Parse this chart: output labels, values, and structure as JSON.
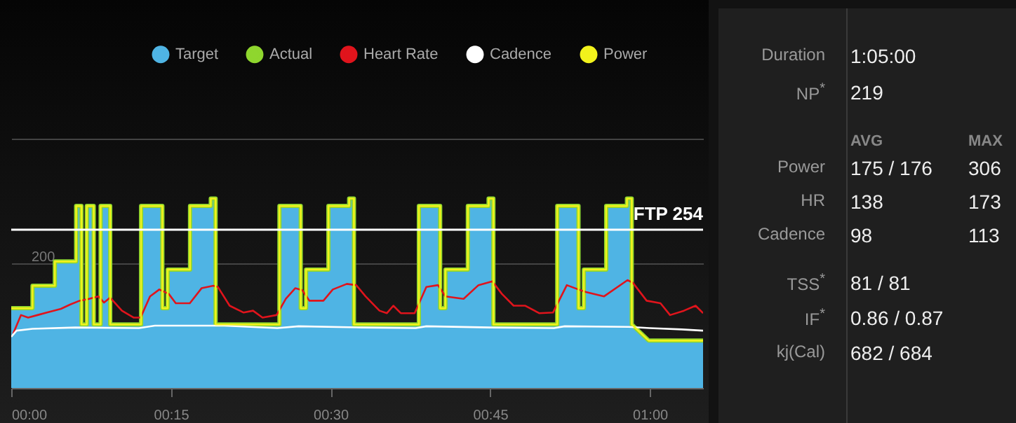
{
  "chart_data": [
    {
      "type": "line",
      "legend": "top right",
      "grid": "y",
      "x": [
        0,
        2,
        2,
        4.1,
        4.1,
        6.1,
        6.1,
        6.6,
        6.6,
        7.1,
        7.1,
        7.75,
        7.75,
        8.4,
        8.4,
        9.3,
        9.3,
        12.2,
        12.2,
        14.2,
        14.2,
        14.7,
        14.7,
        16.8,
        16.8,
        18.75,
        18.75,
        19.2,
        19.2,
        25.2,
        25.2,
        27.2,
        27.2,
        27.7,
        27.7,
        29.8,
        29.8,
        31.75,
        31.75,
        32.2,
        32.2,
        38.3,
        38.3,
        40.3,
        40.3,
        40.8,
        40.8,
        42.9,
        42.9,
        44.85,
        44.85,
        45.3,
        45.3,
        51.3,
        51.3,
        53.3,
        53.3,
        53.8,
        53.8,
        55.9,
        55.9,
        57.85,
        57.85,
        58.3,
        58.3,
        59.9,
        65
      ],
      "xlim": [
        0,
        65
      ],
      "xticks": [
        {
          "value": 0,
          "label": "00:00"
        },
        {
          "value": 15,
          "label": "00:15"
        },
        {
          "value": 30,
          "label": "00:30"
        },
        {
          "value": 45,
          "label": "00:45"
        },
        {
          "value": 60,
          "label": "01:00"
        }
      ],
      "ylim": [
        0,
        400
      ],
      "yticks": [
        200,
        {
          "value": 400,
          "label": null
        }
      ],
      "ref_lines": [
        {
          "axis": "y",
          "value": 254,
          "label": "FTP 254",
          "color": "#ffffff"
        }
      ],
      "series": [
        {
          "name": "Target",
          "type": "area",
          "color": "#4fb4e4",
          "values": [
            128,
            128,
            164,
            164,
            203,
            203,
            292,
            292,
            102,
            102,
            292,
            292,
            102,
            102,
            292,
            292,
            102,
            102,
            292,
            292,
            128,
            128,
            190,
            190,
            292,
            292,
            304,
            304,
            102,
            102,
            292,
            292,
            128,
            128,
            190,
            190,
            292,
            292,
            304,
            304,
            102,
            102,
            292,
            292,
            128,
            128,
            190,
            190,
            292,
            292,
            304,
            304,
            102,
            102,
            292,
            292,
            128,
            128,
            190,
            190,
            292,
            292,
            304,
            304,
            102,
            76,
            76
          ]
        },
        {
          "name": "Actual",
          "color": "#8fd62e",
          "values": [
            128,
            128,
            164,
            164,
            203,
            203,
            292,
            292,
            102,
            102,
            292,
            292,
            102,
            102,
            292,
            292,
            102,
            102,
            292,
            292,
            128,
            128,
            190,
            190,
            292,
            292,
            304,
            304,
            102,
            102,
            292,
            292,
            128,
            128,
            190,
            190,
            292,
            292,
            304,
            304,
            102,
            102,
            292,
            292,
            128,
            128,
            190,
            190,
            292,
            292,
            304,
            304,
            102,
            102,
            292,
            292,
            128,
            128,
            190,
            190,
            292,
            292,
            304,
            304,
            102,
            76,
            76
          ]
        },
        {
          "name": "Heart Rate",
          "color": "#e0141c",
          "x": [
            0.18,
            0.92,
            1.59,
            2.47,
            3.35,
            4.67,
            5.55,
            6.43,
            7.31,
            8.19,
            8.72,
            9.29,
            10.4,
            11.49,
            12.15,
            13.04,
            13.91,
            14.8,
            15.46,
            16.78,
            17.88,
            18.98,
            19.42,
            20.52,
            21.84,
            22.72,
            23.61,
            24.93,
            25.8,
            26.68,
            27.34,
            28.01,
            29.33,
            30.21,
            31.53,
            32.41,
            33.29,
            34.6,
            35.3,
            35.9,
            36.6,
            37.9,
            39,
            40.1,
            40.8,
            42.5,
            43.9,
            45.2,
            46.1,
            47.2,
            48.3,
            49.6,
            50.9,
            52.2,
            53.3,
            54,
            55.7,
            57.9,
            58.4,
            59.7,
            61,
            61.9,
            63.2,
            64.3,
            65
          ],
          "values": [
            87,
            117,
            113,
            117,
            121,
            127,
            134,
            140,
            143,
            147,
            137,
            145,
            124,
            113,
            113,
            147,
            158,
            151,
            136,
            136,
            160,
            164,
            162,
            132,
            121,
            124,
            113,
            117,
            143,
            160,
            157,
            140,
            140,
            158,
            167,
            165,
            147,
            124,
            120,
            132,
            120,
            120,
            162,
            165,
            147,
            143,
            165,
            171,
            151,
            132,
            132,
            120,
            121,
            165,
            158,
            154,
            147,
            173,
            169,
            140,
            136,
            117,
            124,
            132,
            120
          ]
        },
        {
          "name": "Cadence",
          "color": "#ffffff",
          "x": [
            0,
            0.5,
            2,
            6,
            12,
            13.5,
            20,
            25,
            27,
            33,
            38,
            39,
            45,
            51,
            52,
            58,
            60,
            63,
            65
          ],
          "values": [
            82,
            92,
            95,
            97,
            96,
            100,
            100,
            96,
            99,
            97,
            96,
            99,
            97,
            96,
            99,
            98,
            96,
            94,
            92
          ]
        },
        {
          "name": "Power",
          "color": "#f2f21c",
          "values": [
            128,
            128,
            164,
            164,
            203,
            203,
            292,
            292,
            102,
            102,
            292,
            292,
            102,
            102,
            292,
            292,
            102,
            102,
            292,
            292,
            128,
            128,
            190,
            190,
            292,
            292,
            304,
            304,
            102,
            102,
            292,
            292,
            128,
            128,
            190,
            190,
            292,
            292,
            304,
            304,
            102,
            102,
            292,
            292,
            128,
            128,
            190,
            190,
            292,
            292,
            304,
            304,
            102,
            102,
            292,
            292,
            128,
            128,
            190,
            190,
            292,
            292,
            304,
            304,
            102,
            76,
            76
          ]
        }
      ]
    },
    {
      "type": "other",
      "annotations": [
        "Duration",
        "1:05:00",
        "NP$^{*}$",
        "219",
        "AVG",
        "MAX",
        "Power",
        "175 / 176",
        "306",
        "HR",
        "138",
        "173",
        "Cadence",
        "98",
        "113",
        "TSS$^{*}$",
        "81 / 81",
        "IF$^{*}$",
        "0.86 / 0.87",
        "kj(Cal)",
        "682 / 684"
      ]
    }
  ]
}
